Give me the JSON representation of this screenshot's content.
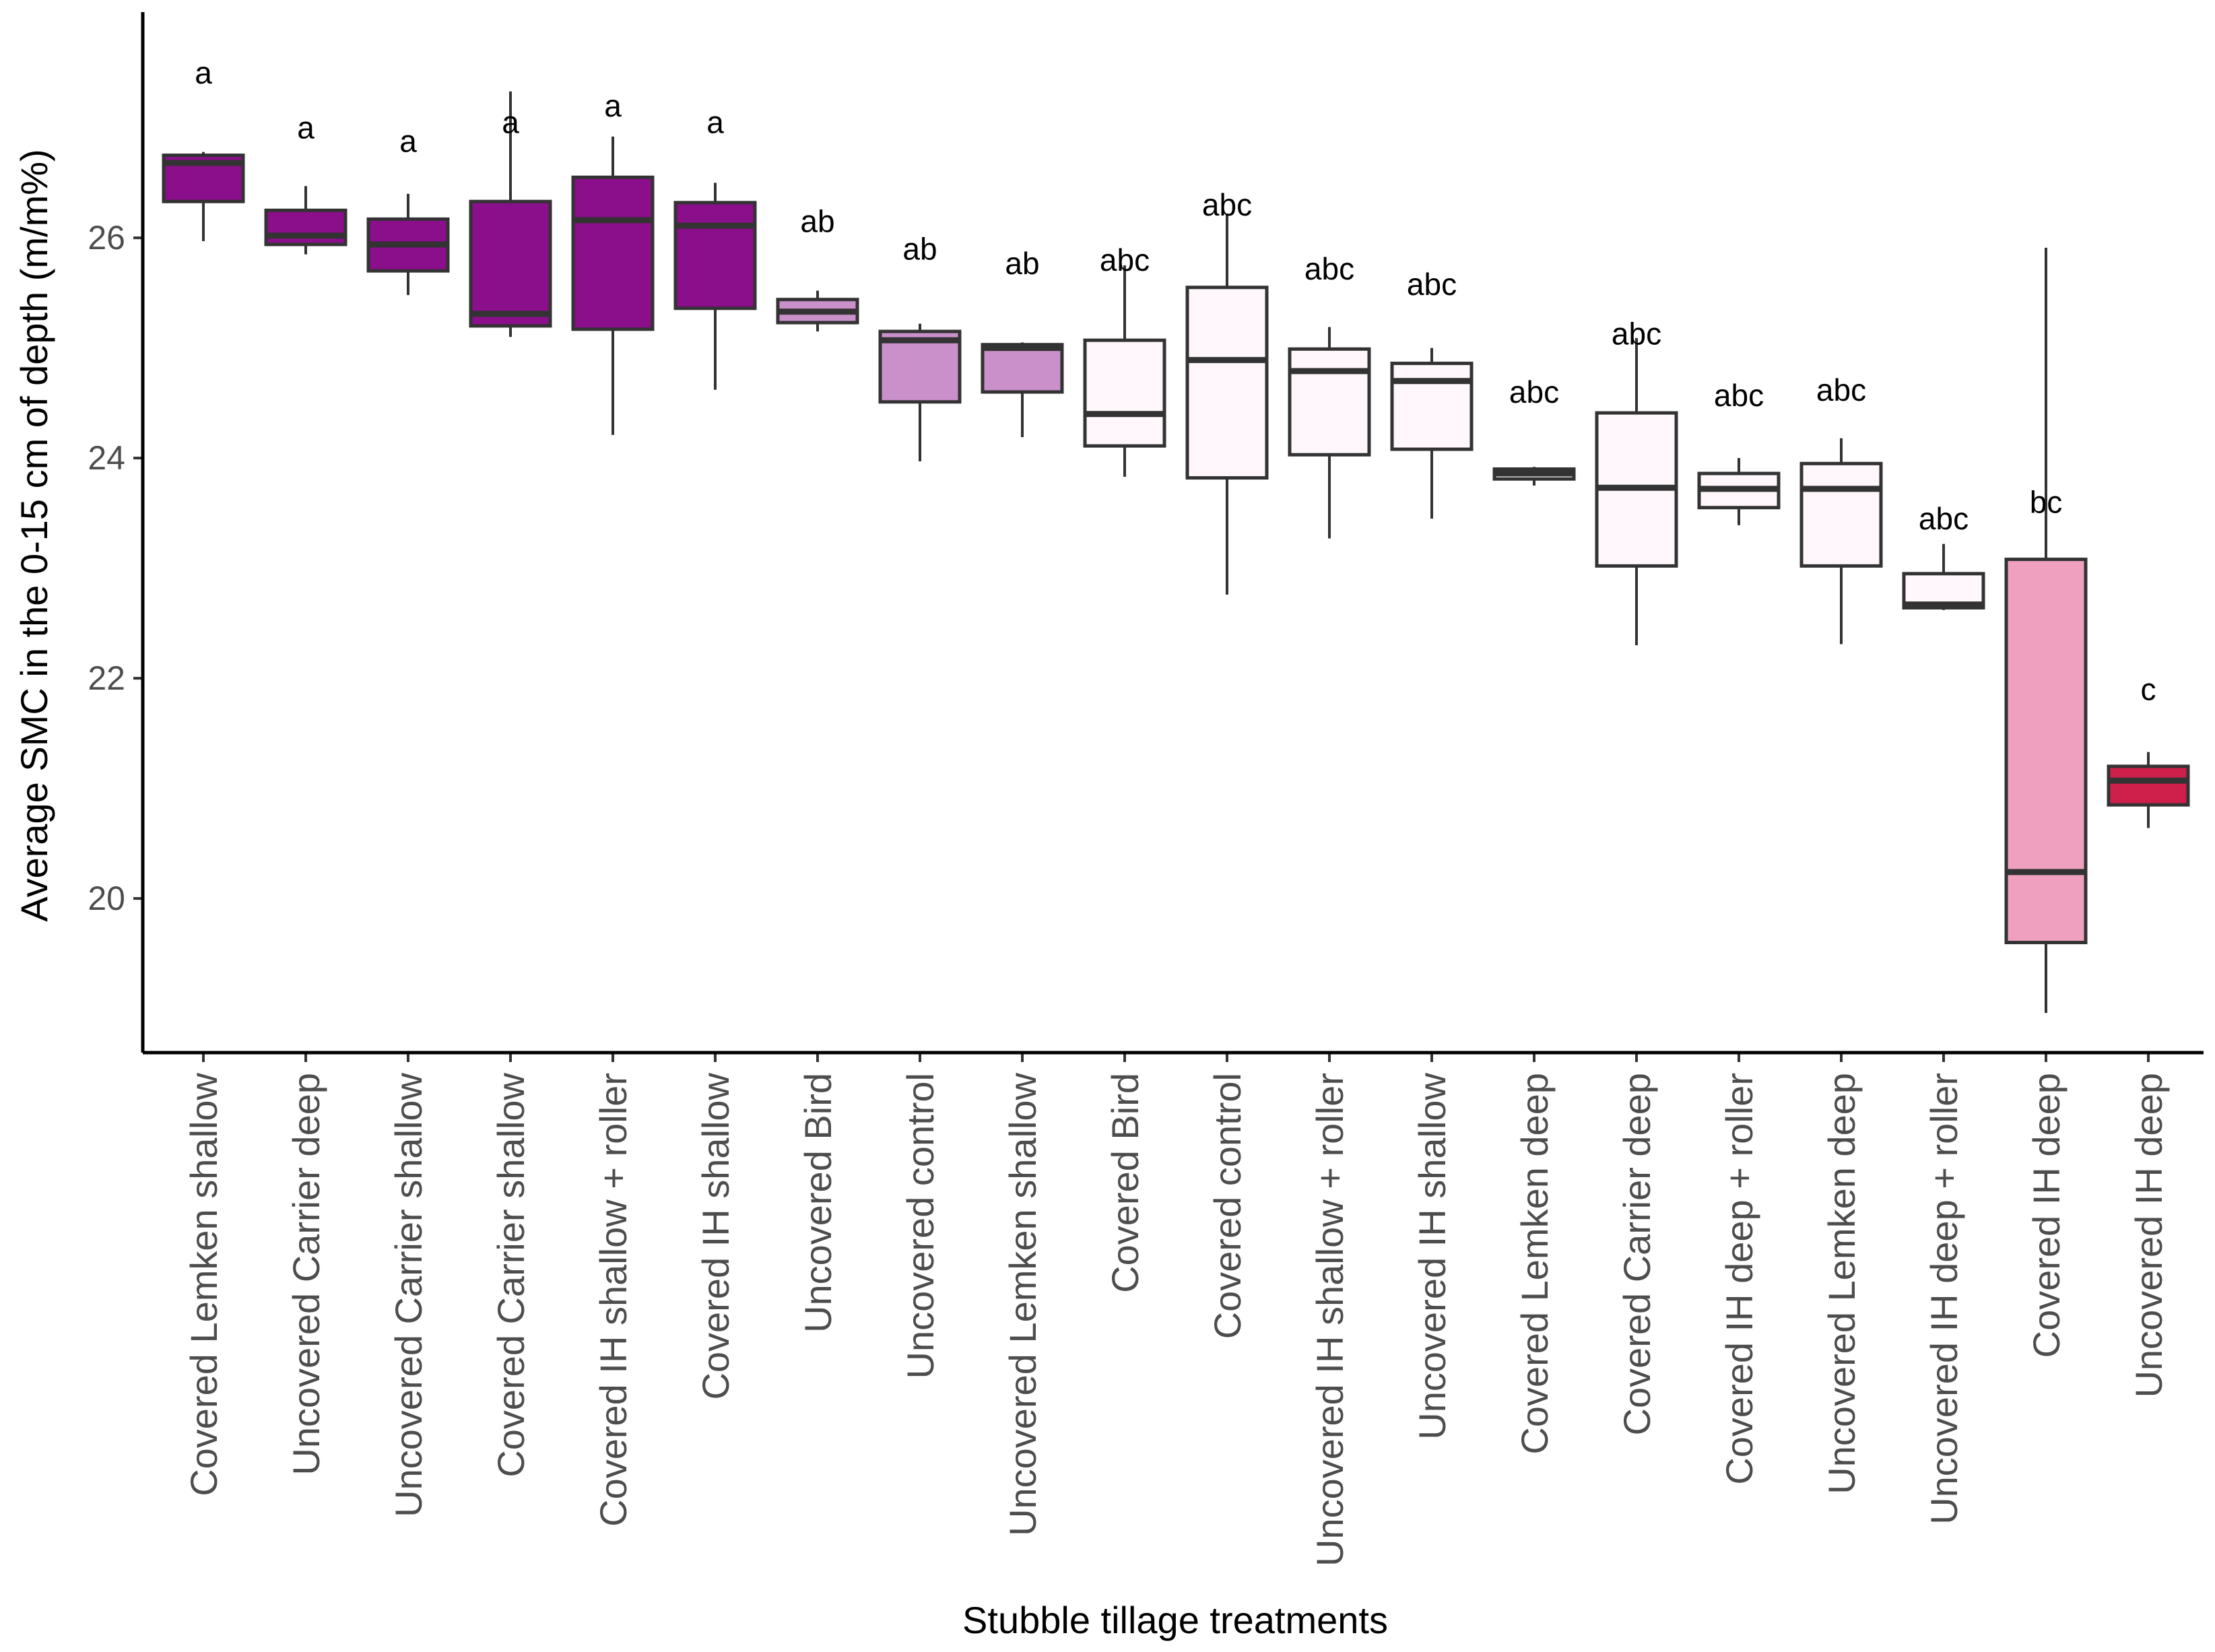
{
  "chart_data": {
    "type": "box",
    "xlabel": "Stubble tillage treatments",
    "ylabel": "Average SMC in the 0-15 cm of depth (m/m%)",
    "ylim": [
      18.6,
      28.05
    ],
    "yticks": [
      20,
      22,
      24,
      26
    ],
    "grid": false,
    "legend": "none",
    "colors": {
      "a": "#8b0e8b",
      "ab": "#c990c9",
      "abc": "#fff7fb",
      "bc": "#eea0be",
      "c": "#cf1f4b",
      "outline": "#333333",
      "axis": "#000000"
    },
    "boxes": [
      {
        "category": "Covered Lemken shallow",
        "min": 25.97,
        "q1": 26.33,
        "median": 26.68,
        "q3": 26.75,
        "max": 26.78,
        "group": "a",
        "color": "#8b0e8b"
      },
      {
        "category": "Uncovered Carrier deep",
        "min": 25.85,
        "q1": 25.94,
        "median": 26.02,
        "q3": 26.25,
        "max": 26.47,
        "group": "a",
        "color": "#8b0e8b"
      },
      {
        "category": "Uncovered Carrier shallow",
        "min": 25.48,
        "q1": 25.7,
        "median": 25.94,
        "q3": 26.17,
        "max": 26.4,
        "group": "a",
        "color": "#8b0e8b"
      },
      {
        "category": "Covered Carrier shallow",
        "min": 25.1,
        "q1": 25.2,
        "median": 25.31,
        "q3": 26.33,
        "max": 27.33,
        "group": "a",
        "color": "#8b0e8b"
      },
      {
        "category": "Covered IH shallow + roller",
        "min": 24.21,
        "q1": 25.17,
        "median": 26.16,
        "q3": 26.55,
        "max": 26.92,
        "group": "a",
        "color": "#8b0e8b"
      },
      {
        "category": "Covered IH shallow",
        "min": 24.62,
        "q1": 25.36,
        "median": 26.11,
        "q3": 26.32,
        "max": 26.5,
        "group": "a",
        "color": "#8b0e8b"
      },
      {
        "category": "Uncovered Bird",
        "min": 25.15,
        "q1": 25.23,
        "median": 25.33,
        "q3": 25.44,
        "max": 25.52,
        "group": "ab",
        "color": "#c990c9"
      },
      {
        "category": "Uncovered control",
        "min": 23.97,
        "q1": 24.51,
        "median": 25.07,
        "q3": 25.15,
        "max": 25.22,
        "group": "ab",
        "color": "#c990c9"
      },
      {
        "category": "Uncovered Lemken shallow",
        "min": 24.19,
        "q1": 24.6,
        "median": 25.0,
        "q3": 25.03,
        "max": 25.05,
        "group": "ab",
        "color": "#c990c9"
      },
      {
        "category": "Covered Bird",
        "min": 23.83,
        "q1": 24.11,
        "median": 24.4,
        "q3": 25.07,
        "max": 25.75,
        "group": "abc",
        "color": "#fff7fb"
      },
      {
        "category": "Covered control",
        "min": 22.76,
        "q1": 23.82,
        "median": 24.89,
        "q3": 25.55,
        "max": 26.22,
        "group": "abc",
        "color": "#fff7fb"
      },
      {
        "category": "Uncovered IH shallow + roller",
        "min": 23.27,
        "q1": 24.03,
        "median": 24.79,
        "q3": 24.99,
        "max": 25.19,
        "group": "abc",
        "color": "#fff7fb"
      },
      {
        "category": "Uncovered IH shallow",
        "min": 23.45,
        "q1": 24.08,
        "median": 24.7,
        "q3": 24.86,
        "max": 25.0,
        "group": "abc",
        "color": "#fff7fb"
      },
      {
        "category": "Covered Lemken deep",
        "min": 23.75,
        "q1": 23.81,
        "median": 23.86,
        "q3": 23.9,
        "max": 23.92,
        "group": "abc",
        "color": "#fff7fb"
      },
      {
        "category": "Covered Carrier deep",
        "min": 22.3,
        "q1": 23.02,
        "median": 23.73,
        "q3": 24.41,
        "max": 25.09,
        "group": "abc",
        "color": "#fff7fb"
      },
      {
        "category": "Covered IH deep + roller",
        "min": 23.39,
        "q1": 23.55,
        "median": 23.72,
        "q3": 23.86,
        "max": 24.0,
        "group": "abc",
        "color": "#fff7fb"
      },
      {
        "category": "Uncovered Lemken deep",
        "min": 22.31,
        "q1": 23.02,
        "median": 23.72,
        "q3": 23.95,
        "max": 24.18,
        "group": "abc",
        "color": "#fff7fb"
      },
      {
        "category": "Uncovered IH deep + roller",
        "min": 22.62,
        "q1": 22.64,
        "median": 22.67,
        "q3": 22.95,
        "max": 23.22,
        "group": "abc",
        "color": "#fff7fb"
      },
      {
        "category": "Covered IH deep",
        "min": 18.96,
        "q1": 19.6,
        "median": 20.24,
        "q3": 23.08,
        "max": 25.91,
        "group": "bc",
        "color": "#eea0be"
      },
      {
        "category": "Uncovered IH deep",
        "min": 20.64,
        "q1": 20.85,
        "median": 21.07,
        "q3": 21.2,
        "max": 21.33,
        "group": "c",
        "color": "#cf1f4b"
      }
    ],
    "annotations": [
      {
        "category": "Covered Lemken shallow",
        "text": "a",
        "y": 27.5
      },
      {
        "category": "Uncovered Carrier deep",
        "text": "a",
        "y": 27.0
      },
      {
        "category": "Uncovered Carrier shallow",
        "text": "a",
        "y": 26.88
      },
      {
        "category": "Covered Carrier shallow",
        "text": "a",
        "y": 27.05
      },
      {
        "category": "Covered IH shallow + roller",
        "text": "a",
        "y": 27.2
      },
      {
        "category": "Covered IH shallow",
        "text": "a",
        "y": 27.05
      },
      {
        "category": "Uncovered Bird",
        "text": "ab",
        "y": 26.15
      },
      {
        "category": "Uncovered control",
        "text": "ab",
        "y": 25.9
      },
      {
        "category": "Uncovered Lemken shallow",
        "text": "ab",
        "y": 25.77
      },
      {
        "category": "Covered Bird",
        "text": "abc",
        "y": 25.8
      },
      {
        "category": "Covered control",
        "text": "abc",
        "y": 26.3
      },
      {
        "category": "Uncovered IH shallow + roller",
        "text": "abc",
        "y": 25.72
      },
      {
        "category": "Uncovered IH shallow",
        "text": "abc",
        "y": 25.58
      },
      {
        "category": "Covered Lemken deep",
        "text": "abc",
        "y": 24.6
      },
      {
        "category": "Covered Carrier deep",
        "text": "abc",
        "y": 25.13
      },
      {
        "category": "Covered IH deep + roller",
        "text": "abc",
        "y": 24.57
      },
      {
        "category": "Uncovered Lemken deep",
        "text": "abc",
        "y": 24.62
      },
      {
        "category": "Uncovered IH deep + roller",
        "text": "abc",
        "y": 23.45
      },
      {
        "category": "Covered IH deep",
        "text": "bc",
        "y": 23.6
      },
      {
        "category": "Uncovered IH deep",
        "text": "c",
        "y": 21.9
      }
    ]
  }
}
